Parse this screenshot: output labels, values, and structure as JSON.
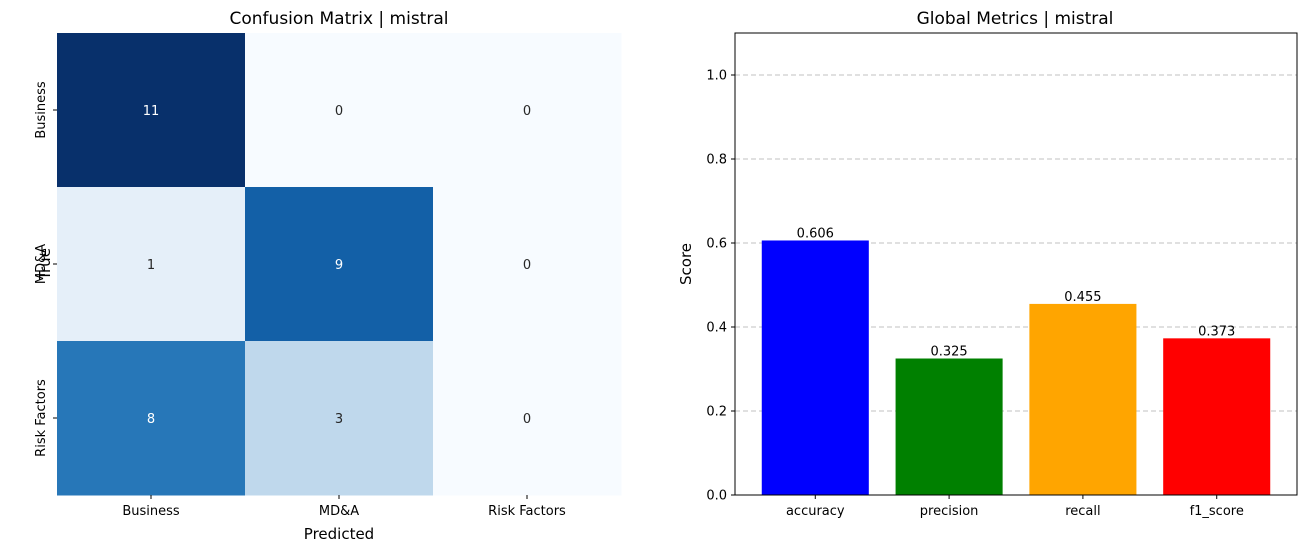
{
  "chart_data": [
    {
      "type": "heatmap",
      "title": "Confusion Matrix | mistral",
      "xlabel": "Predicted",
      "ylabel": "True",
      "x_categories": [
        "Business",
        "MD&A",
        "Risk Factors"
      ],
      "y_categories": [
        "Business",
        "MD&A",
        "Risk Factors"
      ],
      "values": [
        [
          11,
          0,
          0
        ],
        [
          1,
          9,
          0
        ],
        [
          8,
          3,
          0
        ]
      ],
      "colorscale": "Blues",
      "vmin": 0,
      "vmax": 11,
      "colorbar": false
    },
    {
      "type": "bar",
      "title": "Global Metrics | mistral",
      "xlabel": "",
      "ylabel": "Score",
      "categories": [
        "accuracy",
        "precision",
        "recall",
        "f1_score"
      ],
      "values": [
        0.606,
        0.325,
        0.455,
        0.373
      ],
      "value_labels": [
        "0.606",
        "0.325",
        "0.455",
        "0.373"
      ],
      "colors": [
        "#0000ff",
        "#008000",
        "#ffa500",
        "#ff0000"
      ],
      "ylim": [
        0,
        1.1
      ],
      "yticks": [
        0.0,
        0.2,
        0.4,
        0.6,
        0.8,
        1.0
      ],
      "ytick_labels": [
        "0.0",
        "0.2",
        "0.4",
        "0.6",
        "0.8",
        "1.0"
      ],
      "grid": "y-dashed"
    }
  ]
}
